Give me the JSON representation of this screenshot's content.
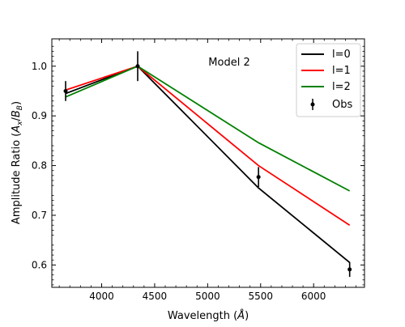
{
  "chart_data": {
    "type": "line",
    "annotation": "Model 2",
    "xlabel": "Wavelength (",
    "xlabel_unit": "Å",
    "xlabel_close": ")",
    "ylabel_main": "Amplitude Ratio (",
    "ylabel_A": "A",
    "ylabel_x": "x",
    "ylabel_slash": "/",
    "ylabel_B": "B",
    "ylabel_close": ")",
    "xlim": [
      3530,
      6480
    ],
    "ylim": [
      0.555,
      1.055
    ],
    "xticks": [
      4000,
      4500,
      5000,
      5500,
      6000
    ],
    "xtick_labels": [
      "4000",
      "4500",
      "5000",
      "5500",
      "6000"
    ],
    "yticks": [
      0.6,
      0.7,
      0.8,
      0.9,
      1.0
    ],
    "ytick_labels": [
      "0.6",
      "0.7",
      "0.8",
      "0.9",
      "1.0"
    ],
    "x": [
      3660,
      4340,
      5480,
      6340
    ],
    "series": [
      {
        "name": "l=0",
        "color": "#000000",
        "values": [
          0.945,
          1.0,
          0.755,
          0.605
        ]
      },
      {
        "name": "l=1",
        "color": "#ff0000",
        "values": [
          0.952,
          1.0,
          0.8,
          0.68
        ]
      },
      {
        "name": "l=2",
        "color": "#008000",
        "values": [
          0.938,
          1.0,
          0.846,
          0.749
        ]
      }
    ],
    "observed": {
      "name": "Obs",
      "color": "#000000",
      "x": [
        3660,
        4340,
        5480,
        6340
      ],
      "y": [
        0.95,
        1.0,
        0.777,
        0.591
      ],
      "yerr": [
        0.02,
        0.03,
        0.02,
        0.015
      ]
    },
    "legend_position": "top-right"
  }
}
